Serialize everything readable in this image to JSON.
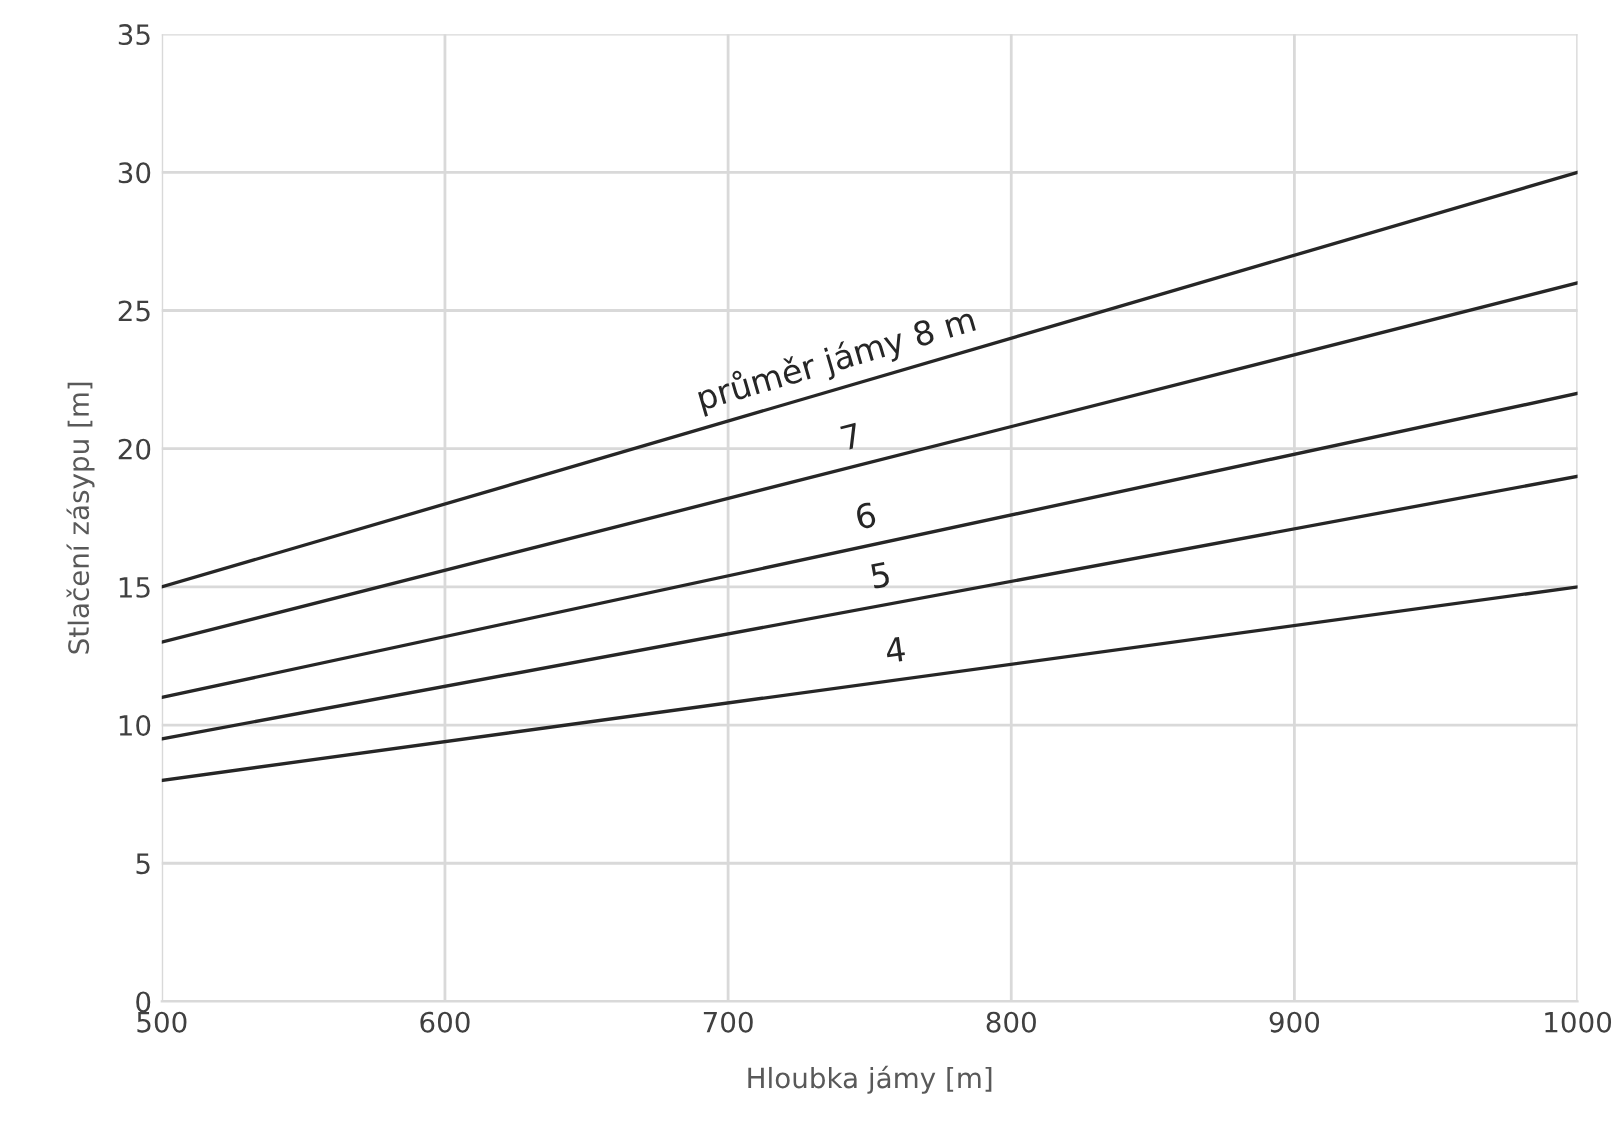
{
  "chart_data": {
    "type": "line",
    "xlabel": "Hloubka jámy [m]",
    "ylabel": "Stlačení zásypu [m]",
    "x": [
      500,
      1000
    ],
    "xlim": [
      500,
      1000
    ],
    "xticks": [
      500,
      600,
      700,
      800,
      900,
      1000
    ],
    "ylim": [
      0,
      35
    ],
    "yticks": [
      0,
      5,
      10,
      15,
      20,
      25,
      30,
      35
    ],
    "grid": true,
    "legend": false,
    "marker": "none",
    "line_style": "solid",
    "series": [
      {
        "name": "průměr jámy 8 m",
        "color": "#262626",
        "values": [
          15,
          30
        ]
      },
      {
        "name": "7",
        "color": "#262626",
        "values": [
          13,
          26
        ]
      },
      {
        "name": "6",
        "color": "#262626",
        "values": [
          11,
          22
        ]
      },
      {
        "name": "5",
        "color": "#262626",
        "values": [
          9.5,
          19
        ]
      },
      {
        "name": "4",
        "color": "#262626",
        "values": [
          8,
          15
        ]
      }
    ]
  }
}
